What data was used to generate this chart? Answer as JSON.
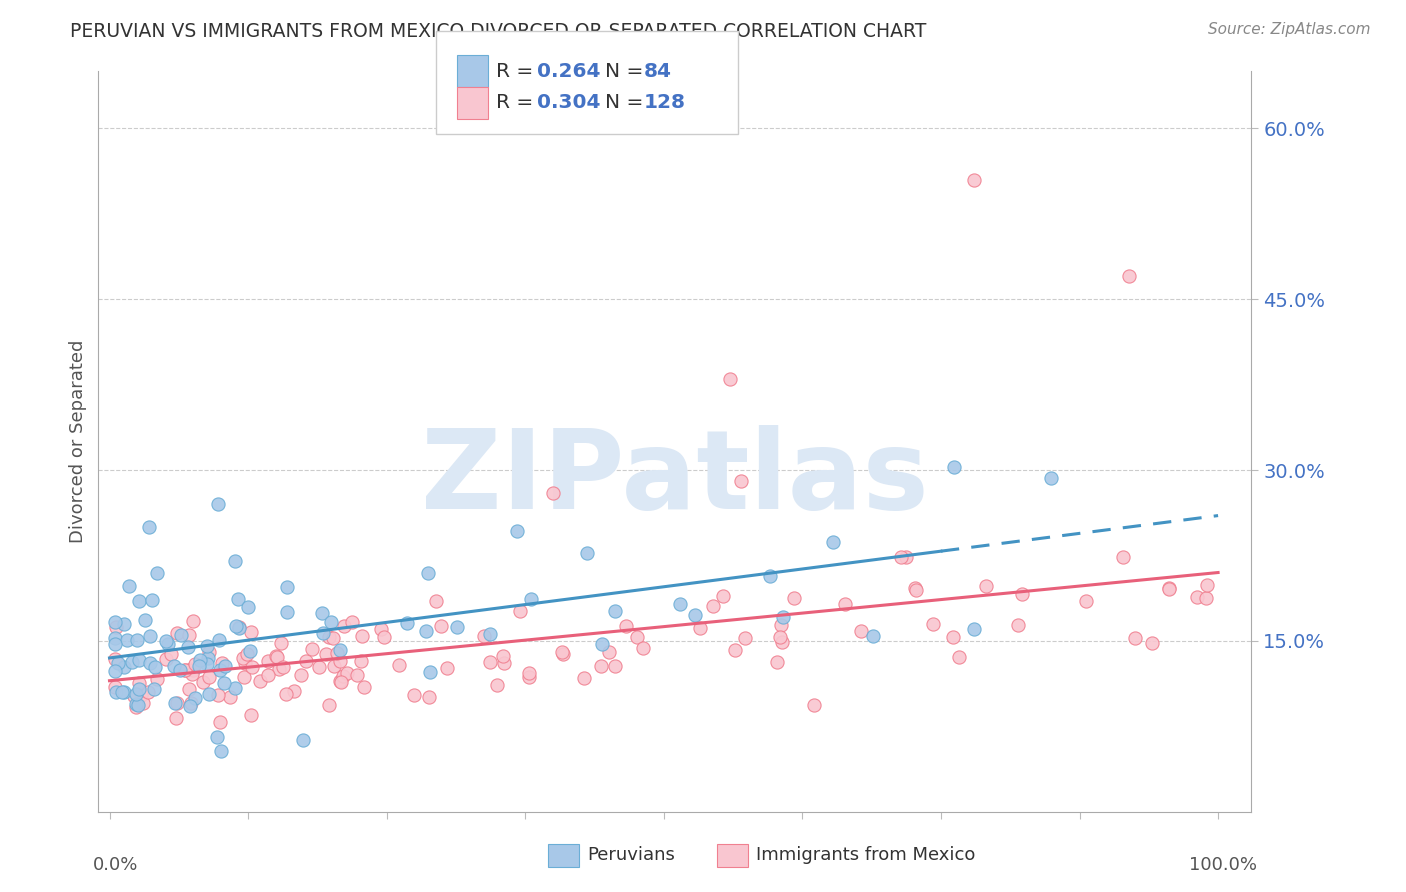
{
  "title": "PERUVIAN VS IMMIGRANTS FROM MEXICO DIVORCED OR SEPARATED CORRELATION CHART",
  "source": "Source: ZipAtlas.com",
  "ylabel": "Divorced or Separated",
  "color_blue": "#A8C8E8",
  "color_blue_edge": "#6BAED6",
  "color_blue_line": "#4393C3",
  "color_pink": "#F9C6D0",
  "color_pink_edge": "#F08090",
  "color_pink_line": "#E8607A",
  "color_tick_label": "#4472C4",
  "color_title": "#333333",
  "color_source": "#888888",
  "color_ylabel": "#555555",
  "watermark_color": "#DCE8F5",
  "grid_color": "#CCCCCC",
  "background_color": "#FFFFFF",
  "ylim": [
    0.0,
    0.65
  ],
  "xlim": [
    -0.01,
    1.03
  ],
  "yticks": [
    0.15,
    0.3,
    0.45,
    0.6
  ],
  "ytick_labels": [
    "15.0%",
    "30.0%",
    "45.0%",
    "60.0%"
  ],
  "legend_items": [
    {
      "label": "R = 0.264   N =  84",
      "color_fill": "#A8C8E8",
      "color_edge": "#6BAED6"
    },
    {
      "label": "R = 0.304   N = 128",
      "color_fill": "#F9C6D0",
      "color_edge": "#F08090"
    }
  ]
}
